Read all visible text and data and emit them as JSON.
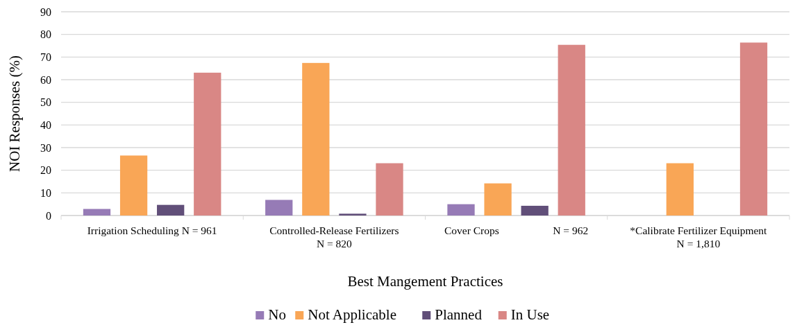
{
  "chart_data": {
    "type": "bar",
    "xlabel": "Best Mangement Practices",
    "ylabel": "NOI Responses (%)",
    "categories": [
      "Irrigation Scheduling N = 961",
      "Controlled-Release Fertilizers\nN = 820",
      "Cover Crops                    N = 962",
      "*Calibrate Fertilizer Equipment\nN = 1,810"
    ],
    "series": [
      {
        "name": "No",
        "color": "#967bb6",
        "values": [
          2.9,
          6.9,
          5.0,
          null
        ]
      },
      {
        "name": "Not Applicable",
        "color": "#f9a656",
        "values": [
          26.5,
          67.4,
          14.2,
          23.1
        ]
      },
      {
        "name": "Planned",
        "color": "#614f79",
        "values": [
          4.7,
          0.8,
          4.3,
          null
        ]
      },
      {
        "name": "In Use",
        "color": "#d98785",
        "values": [
          63.1,
          23.1,
          75.4,
          76.4
        ]
      }
    ],
    "ylim": [
      0,
      90
    ],
    "yticks": [
      0,
      10,
      20,
      30,
      40,
      50,
      60,
      70,
      80,
      90
    ],
    "grid": "y",
    "legend": "bottom"
  }
}
